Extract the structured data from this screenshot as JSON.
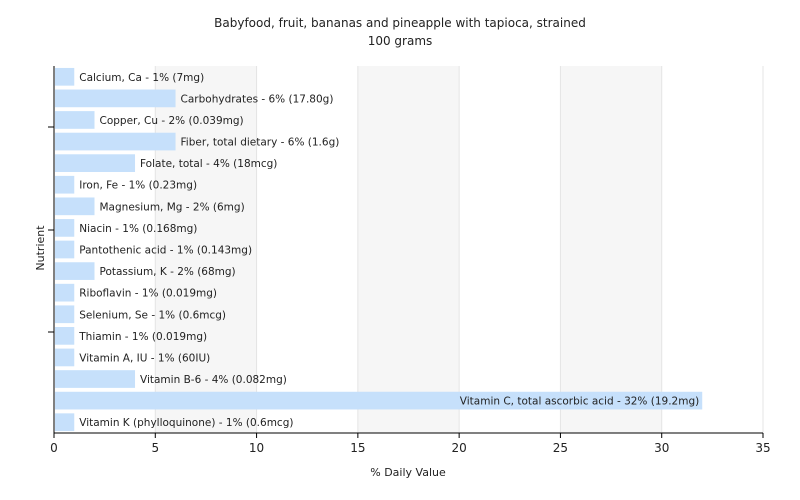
{
  "chart_data": {
    "type": "bar",
    "orientation": "horizontal",
    "title": "Babyfood, fruit, bananas and pineapple with tapioca, strained",
    "subtitle": "100 grams",
    "xlabel": "% Daily Value",
    "ylabel": "Nutrient",
    "xlim": [
      0,
      35
    ],
    "xticks": [
      0,
      5,
      10,
      15,
      20,
      25,
      30,
      35
    ],
    "grid": true,
    "bar_color": "#c6e0fb",
    "categories": [
      "Calcium, Ca",
      "Carbohydrates",
      "Copper, Cu",
      "Fiber, total dietary",
      "Folate, total",
      "Iron, Fe",
      "Magnesium, Mg",
      "Niacin",
      "Pantothenic acid",
      "Potassium, K",
      "Riboflavin",
      "Selenium, Se",
      "Thiamin",
      "Vitamin A, IU",
      "Vitamin B-6",
      "Vitamin C, total ascorbic acid",
      "Vitamin K (phylloquinone)"
    ],
    "values": [
      1,
      6,
      2,
      6,
      4,
      1,
      2,
      1,
      1,
      2,
      1,
      1,
      1,
      1,
      4,
      32,
      1
    ],
    "labels": [
      "Calcium, Ca - 1% (7mg)",
      "Carbohydrates - 6% (17.80g)",
      "Copper, Cu - 2% (0.039mg)",
      "Fiber, total dietary - 6% (1.6g)",
      "Folate, total - 4% (18mcg)",
      "Iron, Fe - 1% (0.23mg)",
      "Magnesium, Mg - 2% (6mg)",
      "Niacin - 1% (0.168mg)",
      "Pantothenic acid - 1% (0.143mg)",
      "Potassium, K - 2% (68mg)",
      "Riboflavin - 1% (0.019mg)",
      "Selenium, Se - 1% (0.6mcg)",
      "Thiamin - 1% (0.019mg)",
      "Vitamin A, IU - 1% (60IU)",
      "Vitamin B-6 - 4% (0.082mg)",
      "Vitamin C, total ascorbic acid - 32% (19.2mg)",
      "Vitamin K (phylloquinone) - 1% (0.6mcg)"
    ]
  }
}
